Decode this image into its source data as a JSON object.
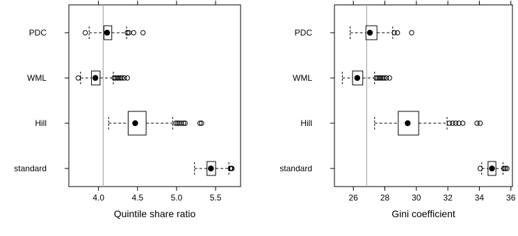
{
  "chart_data": [
    {
      "type": "boxplot",
      "orientation": "horizontal",
      "xlabel": "Quintile share ratio",
      "ylabel": "",
      "xlim": [
        3.62,
        5.82
      ],
      "x_ticks": [
        4.0,
        4.5,
        5.0,
        5.5
      ],
      "x_tick_labels": [
        "4.0",
        "4.5",
        "5.0",
        "5.5"
      ],
      "reference_line": 4.06,
      "categories": [
        "PDC",
        "WML",
        "Hill",
        "standard"
      ],
      "boxes": [
        {
          "name": "PDC",
          "whisker_low": 3.88,
          "q1": 4.07,
          "median": 4.11,
          "q3": 4.17,
          "whisker_high": 4.36,
          "mean": 4.11,
          "outliers": [
            3.83,
            4.37,
            4.39,
            4.45,
            4.57
          ]
        },
        {
          "name": "WML",
          "whisker_low": 3.77,
          "q1": 3.91,
          "median": 3.96,
          "q3": 4.02,
          "whisker_high": 4.19,
          "mean": 3.96,
          "outliers": [
            3.74,
            4.2,
            4.22,
            4.24,
            4.26,
            4.28,
            4.3,
            4.33,
            4.37
          ]
        },
        {
          "name": "Hill",
          "whisker_low": 4.13,
          "q1": 4.38,
          "median": 4.47,
          "q3": 4.61,
          "whisker_high": 4.95,
          "mean": 4.48,
          "outliers": [
            4.99,
            5.01,
            5.03,
            5.06,
            5.09,
            5.11,
            5.3,
            5.32
          ]
        },
        {
          "name": "standard",
          "whisker_low": 5.23,
          "q1": 5.39,
          "median": 5.44,
          "q3": 5.5,
          "whisker_high": 5.67,
          "mean": 5.44,
          "outliers": [
            5.69,
            5.7,
            5.71
          ]
        }
      ]
    },
    {
      "type": "boxplot",
      "orientation": "horizontal",
      "xlabel": "Gini coefficient",
      "ylabel": "",
      "xlim": [
        24.8,
        36.1
      ],
      "x_ticks": [
        26,
        28,
        30,
        32,
        34,
        36
      ],
      "x_tick_labels": [
        "26",
        "28",
        "30",
        "32",
        "34",
        "36"
      ],
      "reference_line": 26.85,
      "categories": [
        "PDC",
        "WML",
        "Hill",
        "standard"
      ],
      "boxes": [
        {
          "name": "PDC",
          "whisker_low": 25.8,
          "q1": 26.8,
          "median": 27.05,
          "q3": 27.5,
          "whisker_high": 28.5,
          "mean": 27.05,
          "outliers": [
            28.6,
            28.8,
            29.7
          ]
        },
        {
          "name": "WML",
          "whisker_low": 25.3,
          "q1": 25.95,
          "median": 26.25,
          "q3": 26.6,
          "whisker_high": 27.35,
          "mean": 26.25,
          "outliers": [
            27.45,
            27.55,
            27.65,
            27.75,
            27.85,
            27.95,
            28.1,
            28.3
          ]
        },
        {
          "name": "Hill",
          "whisker_low": 27.35,
          "q1": 28.85,
          "median": 29.45,
          "q3": 30.15,
          "whisker_high": 31.95,
          "mean": 29.45,
          "outliers": [
            32.1,
            32.3,
            32.5,
            32.7,
            32.95,
            33.85,
            34.05
          ]
        },
        {
          "name": "standard",
          "whisker_low": 34.15,
          "q1": 34.55,
          "median": 34.8,
          "q3": 35.05,
          "whisker_high": 35.5,
          "mean": 34.8,
          "outliers": [
            34.05,
            35.55,
            35.65,
            35.75
          ]
        }
      ]
    }
  ]
}
